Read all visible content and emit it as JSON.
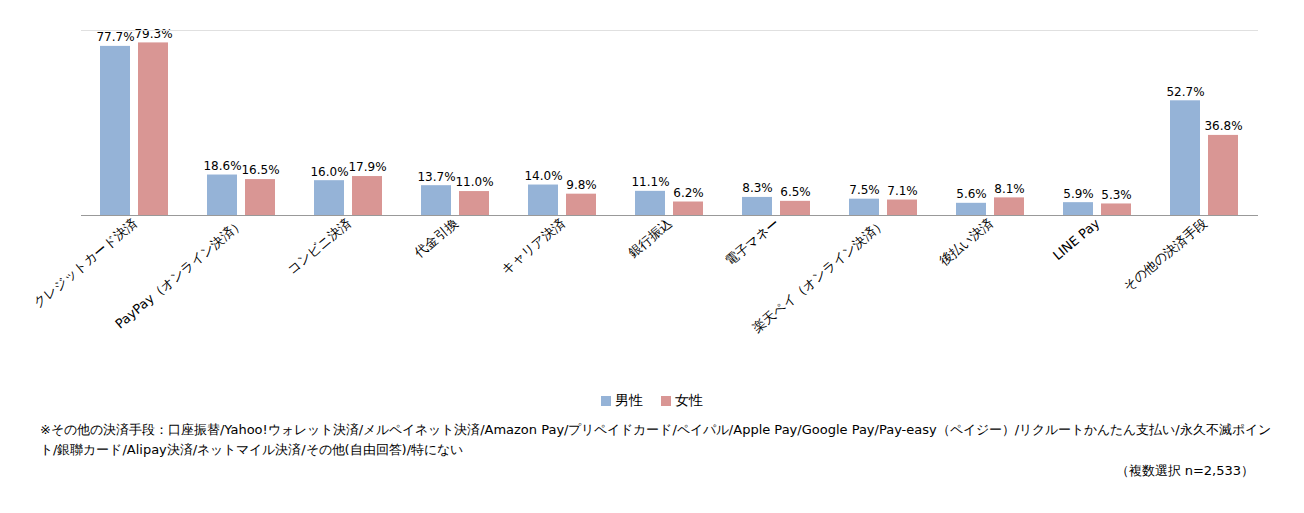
{
  "chart_data": {
    "type": "bar",
    "categories": [
      "クレジットカード決済",
      "PayPay（オンライン決済）",
      "コンビニ決済",
      "代金引換",
      "キャリア決済",
      "銀行振込",
      "電子マネー",
      "楽天ペイ（オンライン決済）",
      "後払い決済",
      "LINE Pay",
      "その他の決済手段"
    ],
    "series": [
      {
        "name": "男性",
        "color": "#95b3d7",
        "values": [
          77.7,
          18.6,
          16.0,
          13.7,
          14.0,
          11.1,
          8.3,
          7.5,
          5.6,
          5.9,
          52.7
        ],
        "value_labels": [
          "77.7%",
          "18.6%",
          "16.0%",
          "13.7%",
          "14.0%",
          "11.1%",
          "8.3%",
          "7.5%",
          "5.6%",
          "5.9%",
          "52.7%"
        ]
      },
      {
        "name": "女性",
        "color": "#d99694",
        "values": [
          79.3,
          16.5,
          17.9,
          11.0,
          9.8,
          6.2,
          6.5,
          7.1,
          8.1,
          5.3,
          36.8
        ],
        "value_labels": [
          "79.3%",
          "16.5%",
          "17.9%",
          "11.0%",
          "9.8%",
          "6.2%",
          "6.5%",
          "7.1%",
          "8.1%",
          "5.3%",
          "36.8%"
        ]
      }
    ],
    "ylim": [
      0,
      85
    ],
    "yticks": [],
    "data_labels": true,
    "tick_labels": "x",
    "legend": "bottom",
    "notes": [
      "※その他の決済手段：口座振替/Yahoo!ウォレット決済/メルペイネット決済/Amazon Pay/プリペイドカード/ペイパル/Apple Pay/Google Pay/Pay-easy（ペイジー）/リクルートかんたん支払い/永久不滅ポイント/銀聯カード/Alipay決済/ネットマイル決済/その他(自由回答)/特にない"
    ],
    "sample": "（複数選択 n=2,533）"
  }
}
